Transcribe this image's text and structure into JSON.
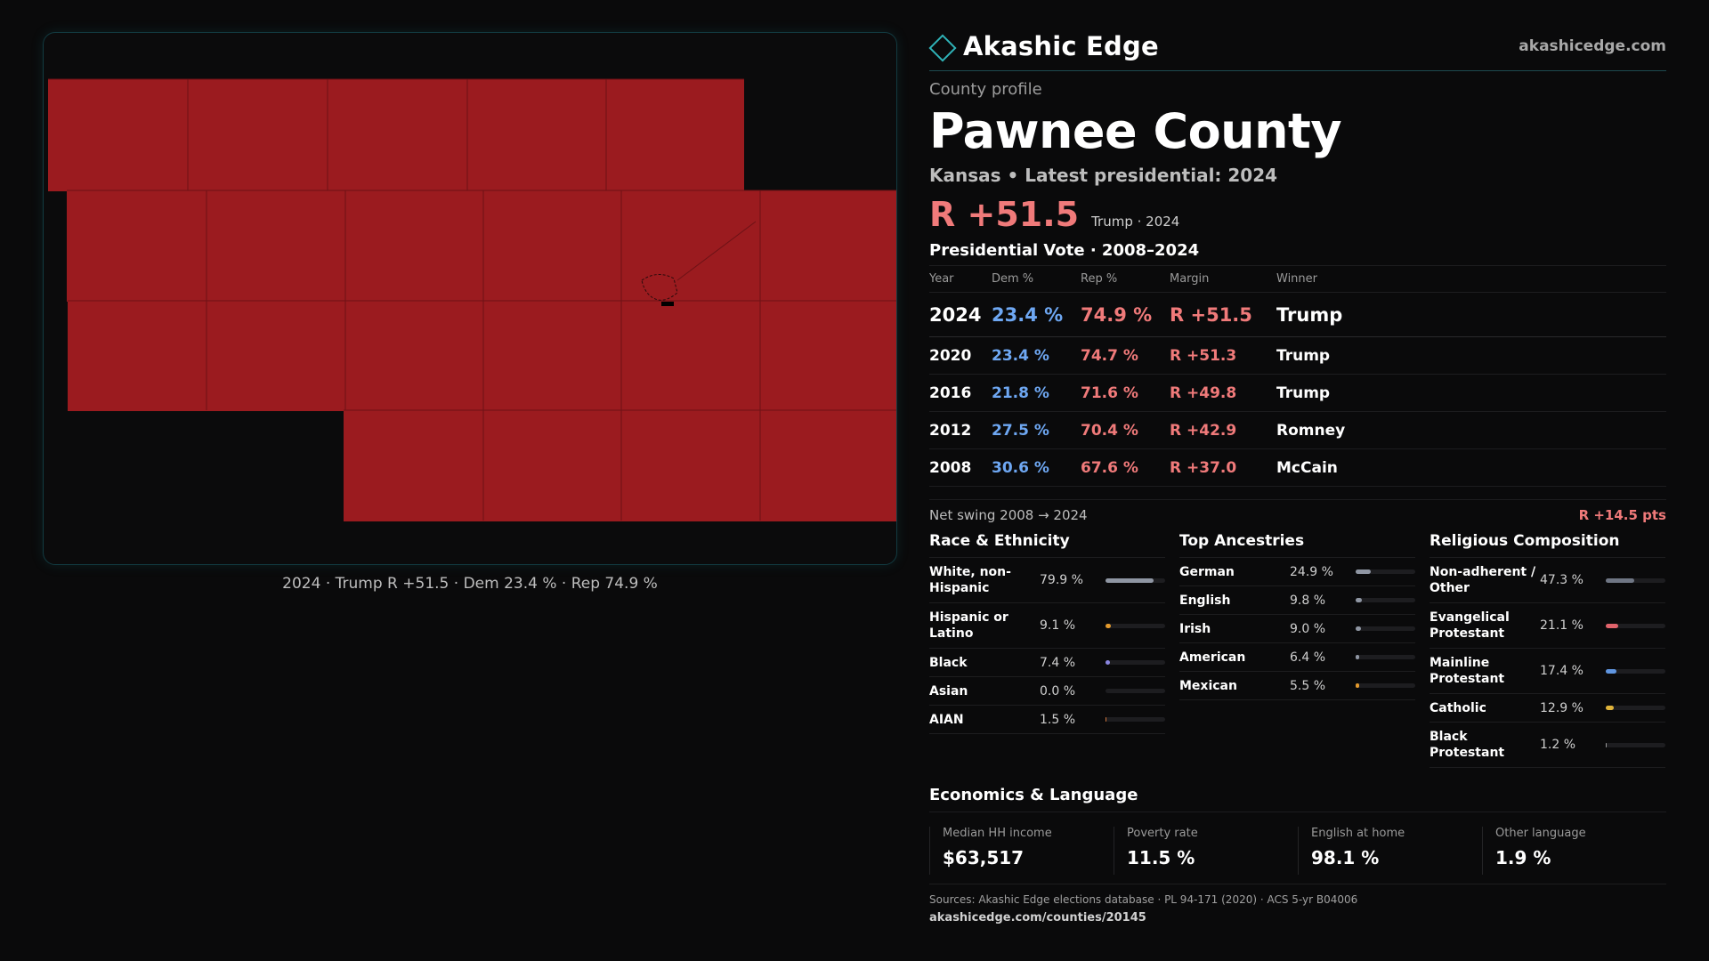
{
  "brand": {
    "name": "Akashic Edge",
    "site": "akashicedge.com"
  },
  "map": {
    "caption": "2024 · Trump R +51.5 · Dem 23.4 % · Rep 74.9 %",
    "fill_color": "#9b1b1f",
    "line_color": "#6e1216"
  },
  "profile": {
    "eyebrow": "County profile",
    "county": "Pawnee County",
    "subtitle": "Kansas • Latest presidential: 2024",
    "headline_margin": "R +51.5",
    "headline_note": "Trump · 2024"
  },
  "vote_table": {
    "title": "Presidential Vote · 2008–2024",
    "headers": {
      "year": "Year",
      "dem": "Dem %",
      "rep": "Rep %",
      "margin": "Margin",
      "winner": "Winner"
    },
    "rows": [
      {
        "year": "2024",
        "dem": "23.4 %",
        "rep": "74.9 %",
        "margin": "R +51.5",
        "winner": "Trump"
      },
      {
        "year": "2020",
        "dem": "23.4 %",
        "rep": "74.7 %",
        "margin": "R +51.3",
        "winner": "Trump"
      },
      {
        "year": "2016",
        "dem": "21.8 %",
        "rep": "71.6 %",
        "margin": "R +49.8",
        "winner": "Trump"
      },
      {
        "year": "2012",
        "dem": "27.5 %",
        "rep": "70.4 %",
        "margin": "R +42.9",
        "winner": "Romney"
      },
      {
        "year": "2008",
        "dem": "30.6 %",
        "rep": "67.6 %",
        "margin": "R +37.0",
        "winner": "McCain"
      }
    ]
  },
  "swing": {
    "label": "Net swing 2008 → 2024",
    "value": "R +14.5 pts"
  },
  "race": {
    "title": "Race & Ethnicity",
    "items": [
      {
        "label": "White, non-Hispanic",
        "value": "79.9 %",
        "pct": 79.9,
        "color": "#8f96a3"
      },
      {
        "label": "Hispanic or Latino",
        "value": "9.1 %",
        "pct": 9.1,
        "color": "#e39a2d"
      },
      {
        "label": "Black",
        "value": "7.4 %",
        "pct": 7.4,
        "color": "#8a86e0"
      },
      {
        "label": "Asian",
        "value": "0.0 %",
        "pct": 0.0,
        "color": "#5fb3a8"
      },
      {
        "label": "AIAN",
        "value": "1.5 %",
        "pct": 1.5,
        "color": "#d1763c"
      }
    ]
  },
  "ancestry": {
    "title": "Top Ancestries",
    "items": [
      {
        "label": "German",
        "value": "24.9 %",
        "pct": 24.9,
        "color": "#8f96a3"
      },
      {
        "label": "English",
        "value": "9.8 %",
        "pct": 9.8,
        "color": "#8f96a3"
      },
      {
        "label": "Irish",
        "value": "9.0 %",
        "pct": 9.0,
        "color": "#8f96a3"
      },
      {
        "label": "American",
        "value": "6.4 %",
        "pct": 6.4,
        "color": "#8f96a3"
      },
      {
        "label": "Mexican",
        "value": "5.5 %",
        "pct": 5.5,
        "color": "#e39a2d"
      }
    ]
  },
  "religion": {
    "title": "Religious Composition",
    "items": [
      {
        "label": "Non-adherent / Other",
        "value": "47.3 %",
        "pct": 47.3,
        "color": "#6f7684"
      },
      {
        "label": "Evangelical Protestant",
        "value": "21.1 %",
        "pct": 21.1,
        "color": "#e0636b"
      },
      {
        "label": "Mainline Protestant",
        "value": "17.4 %",
        "pct": 17.4,
        "color": "#5f95e0"
      },
      {
        "label": "Catholic",
        "value": "12.9 %",
        "pct": 12.9,
        "color": "#e0b43a"
      },
      {
        "label": "Black Protestant",
        "value": "1.2 %",
        "pct": 1.2,
        "color": "#9a9a9a"
      }
    ]
  },
  "economics": {
    "title": "Economics & Language",
    "items": [
      {
        "label": "Median HH income",
        "value": "$63,517"
      },
      {
        "label": "Poverty rate",
        "value": "11.5 %"
      },
      {
        "label": "English at home",
        "value": "98.1 %"
      },
      {
        "label": "Other language",
        "value": "1.9 %"
      }
    ]
  },
  "footer": {
    "sources": "Sources: Akashic Edge elections database · PL 94-171 (2020) · ACS 5-yr B04006",
    "url": "akashicedge.com/counties/20145"
  }
}
